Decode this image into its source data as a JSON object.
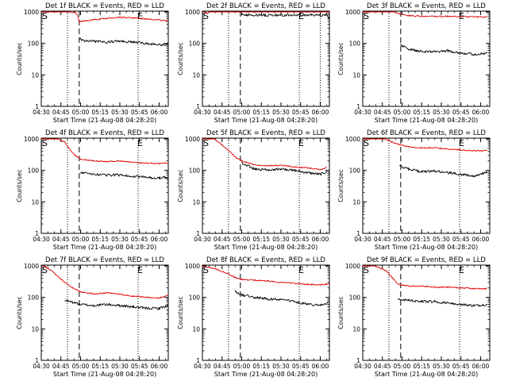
{
  "figure": {
    "x_axis_title": "Start Time (21-Aug-08 04:28:20)",
    "y_axis_title": "Counts/sec",
    "x_tick_labels": [
      "04:30",
      "04:45",
      "05:00",
      "05:15",
      "05:30",
      "05:45",
      "06:00"
    ],
    "y_tick_labels": [
      "1",
      "10",
      "100",
      "1000"
    ],
    "colors": {
      "events": "#000000",
      "lld": "#e00000"
    }
  },
  "chart_data": [
    {
      "type": "line",
      "title": "Det 1f BLACK = Events, RED = LLD",
      "marker_s": "S",
      "marker_e": "E",
      "xlabel": "Start Time (21-Aug-08 04:28:20)",
      "ylabel": "Counts/sec",
      "yscale": "log",
      "ylim": [
        1,
        1000
      ],
      "xlim": [
        "04:30",
        "06:07"
      ],
      "vlines": [
        {
          "time": "04:50",
          "style": "dotted"
        },
        {
          "time": "04:59",
          "style": "dashed"
        },
        {
          "time": "05:44",
          "style": "dotted"
        }
      ],
      "x": [
        "04:30",
        "04:40",
        "04:50",
        "04:56",
        "04:58",
        "04:59",
        "05:03",
        "05:10",
        "05:20",
        "05:30",
        "05:40",
        "05:50",
        "06:00",
        "06:07"
      ],
      "series": [
        {
          "name": "LLD",
          "values": [
            1050,
            1050,
            1050,
            950,
            700,
            480,
            520,
            560,
            620,
            680,
            640,
            600,
            550,
            520
          ]
        },
        {
          "name": "Events",
          "values": [
            null,
            null,
            null,
            null,
            null,
            140,
            120,
            115,
            110,
            120,
            110,
            100,
            90,
            95
          ]
        }
      ]
    },
    {
      "type": "line",
      "title": "Det 2f BLACK = Events, RED = LLD",
      "marker_s": "S",
      "marker_e": "E",
      "xlabel": "Start Time (21-Aug-08 04:28:20)",
      "ylabel": "Counts/sec",
      "yscale": "log",
      "ylim": [
        1,
        1000
      ],
      "xlim": [
        "04:30",
        "06:07"
      ],
      "vlines": [
        {
          "time": "04:50",
          "style": "dotted"
        },
        {
          "time": "04:59",
          "style": "dashed"
        },
        {
          "time": "05:44",
          "style": "dotted"
        },
        {
          "time": "06:00",
          "style": "dotted"
        }
      ],
      "x": [
        "04:30",
        "04:32",
        "04:34",
        "04:36",
        "04:40",
        "04:50",
        "04:58",
        "05:00",
        "05:20",
        "05:40",
        "06:00",
        "06:05",
        "06:07"
      ],
      "series": [
        {
          "name": "LLD",
          "values": [
            1050,
            1050,
            900,
            1150,
            1150,
            1150,
            1150,
            1130,
            1120,
            1120,
            1110,
            1100,
            1000
          ]
        },
        {
          "name": "Events",
          "values": [
            null,
            null,
            null,
            null,
            null,
            null,
            null,
            800,
            790,
            790,
            790,
            800,
            600
          ]
        }
      ]
    },
    {
      "type": "line",
      "title": "Det 3f BLACK = Events, RED = LLD",
      "marker_s": "S",
      "marker_e": "E",
      "xlabel": "Start Time (21-Aug-08 04:28:20)",
      "ylabel": "Counts/sec",
      "yscale": "log",
      "ylim": [
        1,
        1000
      ],
      "xlim": [
        "04:30",
        "06:07"
      ],
      "vlines": [
        {
          "time": "04:50",
          "style": "dotted"
        },
        {
          "time": "04:59",
          "style": "dashed"
        },
        {
          "time": "05:44",
          "style": "dotted"
        }
      ],
      "x": [
        "04:30",
        "04:40",
        "04:50",
        "04:56",
        "04:59",
        "05:05",
        "05:15",
        "05:25",
        "05:35",
        "05:45",
        "05:55",
        "06:05"
      ],
      "series": [
        {
          "name": "LLD",
          "values": [
            1100,
            1100,
            1050,
            960,
            820,
            760,
            730,
            720,
            720,
            710,
            700,
            690
          ]
        },
        {
          "name": "Events",
          "values": [
            null,
            null,
            null,
            null,
            90,
            65,
            55,
            55,
            58,
            50,
            45,
            48
          ]
        }
      ]
    },
    {
      "type": "line",
      "title": "Det 4f BLACK = Events, RED = LLD",
      "marker_s": "S",
      "marker_e": "E",
      "xlabel": "Start Time (21-Aug-08 04:28:20)",
      "ylabel": "Counts/sec",
      "yscale": "log",
      "ylim": [
        1,
        1000
      ],
      "xlim": [
        "04:30",
        "06:07"
      ],
      "vlines": [
        {
          "time": "04:50",
          "style": "dotted"
        },
        {
          "time": "04:59",
          "style": "dashed"
        },
        {
          "time": "05:44",
          "style": "dotted"
        }
      ],
      "x": [
        "04:30",
        "04:40",
        "04:48",
        "04:52",
        "04:56",
        "05:00",
        "05:10",
        "05:20",
        "05:30",
        "05:40",
        "05:50",
        "06:00",
        "06:07"
      ],
      "series": [
        {
          "name": "LLD",
          "values": [
            1100,
            1100,
            800,
            450,
            300,
            230,
            200,
            190,
            200,
            180,
            170,
            165,
            170
          ]
        },
        {
          "name": "Events",
          "values": [
            null,
            null,
            null,
            null,
            null,
            85,
            75,
            70,
            72,
            65,
            60,
            58,
            60
          ]
        }
      ]
    },
    {
      "type": "line",
      "title": "Det 5f BLACK = Events, RED = LLD",
      "marker_s": "S",
      "marker_e": "E",
      "xlabel": "Start Time (21-Aug-08 04:28:20)",
      "ylabel": "Counts/sec",
      "yscale": "log",
      "ylim": [
        1,
        1000
      ],
      "xlim": [
        "04:30",
        "06:07"
      ],
      "vlines": [
        {
          "time": "04:50",
          "style": "dotted"
        },
        {
          "time": "04:59",
          "style": "dashed"
        },
        {
          "time": "05:44",
          "style": "dotted"
        }
      ],
      "x": [
        "04:30",
        "04:38",
        "04:44",
        "04:50",
        "04:56",
        "05:00",
        "05:10",
        "05:20",
        "05:30",
        "05:40",
        "05:50",
        "06:00",
        "06:05"
      ],
      "series": [
        {
          "name": "LLD",
          "values": [
            1100,
            1100,
            700,
            420,
            250,
            200,
            150,
            140,
            145,
            130,
            120,
            105,
            125
          ]
        },
        {
          "name": "Events",
          "values": [
            null,
            null,
            null,
            null,
            null,
            170,
            110,
            105,
            110,
            100,
            85,
            75,
            90
          ]
        }
      ]
    },
    {
      "type": "line",
      "title": "Det 6f BLACK = Events, RED = LLD",
      "marker_s": "S",
      "marker_e": "E",
      "xlabel": "Start Time (21-Aug-08 04:28:20)",
      "ylabel": "Counts/sec",
      "yscale": "log",
      "ylim": [
        1,
        1000
      ],
      "xlim": [
        "04:30",
        "06:07"
      ],
      "vlines": [
        {
          "time": "04:50",
          "style": "dotted"
        },
        {
          "time": "04:59",
          "style": "dashed"
        },
        {
          "time": "05:44",
          "style": "dotted"
        }
      ],
      "x": [
        "04:30",
        "04:45",
        "04:52",
        "04:58",
        "05:05",
        "05:15",
        "05:25",
        "05:35",
        "05:45",
        "05:55",
        "06:05"
      ],
      "series": [
        {
          "name": "LLD",
          "values": [
            1100,
            1100,
            800,
            650,
            560,
            520,
            520,
            480,
            450,
            420,
            430
          ]
        },
        {
          "name": "Events",
          "values": [
            null,
            null,
            null,
            140,
            110,
            90,
            95,
            85,
            75,
            65,
            90
          ]
        }
      ]
    },
    {
      "type": "line",
      "title": "Det 7f BLACK = Events, RED = LLD",
      "marker_s": "S",
      "marker_e": "E",
      "xlabel": "Start Time (21-Aug-08 04:28:20)",
      "ylabel": "Counts/sec",
      "yscale": "log",
      "ylim": [
        1,
        1000
      ],
      "xlim": [
        "04:30",
        "06:07"
      ],
      "vlines": [
        {
          "time": "04:50",
          "style": "dotted"
        },
        {
          "time": "04:59",
          "style": "dashed"
        },
        {
          "time": "05:44",
          "style": "dotted"
        }
      ],
      "x": [
        "04:30",
        "04:36",
        "04:42",
        "04:48",
        "04:54",
        "05:00",
        "05:10",
        "05:20",
        "05:30",
        "05:40",
        "05:50",
        "06:00",
        "06:07"
      ],
      "series": [
        {
          "name": "LLD",
          "values": [
            1100,
            800,
            500,
            300,
            200,
            150,
            130,
            140,
            125,
            110,
            100,
            95,
            120
          ]
        },
        {
          "name": "Events",
          "values": [
            null,
            null,
            null,
            80,
            70,
            60,
            55,
            60,
            55,
            50,
            45,
            45,
            55
          ]
        }
      ]
    },
    {
      "type": "line",
      "title": "Det 8f BLACK = Events, RED = LLD",
      "marker_s": "S",
      "marker_e": "E",
      "xlabel": "Start Time (21-Aug-08 04:28:20)",
      "ylabel": "Counts/sec",
      "yscale": "log",
      "ylim": [
        1,
        1000
      ],
      "xlim": [
        "04:30",
        "06:07"
      ],
      "vlines": [
        {
          "time": "04:50",
          "style": "dotted"
        },
        {
          "time": "04:59",
          "style": "dashed"
        },
        {
          "time": "05:44",
          "style": "dotted"
        }
      ],
      "x": [
        "04:30",
        "04:40",
        "04:50",
        "04:55",
        "05:00",
        "05:10",
        "05:20",
        "05:30",
        "05:40",
        "05:50",
        "06:00",
        "06:07"
      ],
      "series": [
        {
          "name": "LLD",
          "values": [
            1000,
            800,
            560,
            420,
            370,
            350,
            330,
            300,
            280,
            260,
            250,
            270
          ]
        },
        {
          "name": "Events",
          "values": [
            null,
            null,
            null,
            160,
            120,
            100,
            90,
            85,
            75,
            60,
            55,
            70
          ]
        }
      ]
    },
    {
      "type": "line",
      "title": "Det 9f BLACK = Events, RED = LLD",
      "marker_s": "S",
      "marker_e": "E",
      "xlabel": "Start Time (21-Aug-08 04:28:20)",
      "ylabel": "Counts/sec",
      "yscale": "log",
      "ylim": [
        1,
        1000
      ],
      "xlim": [
        "04:30",
        "06:07"
      ],
      "vlines": [
        {
          "time": "04:50",
          "style": "dotted"
        },
        {
          "time": "04:59",
          "style": "dashed"
        },
        {
          "time": "05:44",
          "style": "dotted"
        }
      ],
      "x": [
        "04:30",
        "04:40",
        "04:48",
        "04:53",
        "04:57",
        "05:05",
        "05:15",
        "05:25",
        "05:35",
        "05:45",
        "05:55",
        "06:05"
      ],
      "series": [
        {
          "name": "LLD",
          "values": [
            1100,
            1000,
            700,
            400,
            260,
            230,
            230,
            210,
            210,
            200,
            190,
            190
          ]
        },
        {
          "name": "Events",
          "values": [
            null,
            null,
            null,
            null,
            90,
            80,
            75,
            75,
            65,
            60,
            55,
            60
          ]
        }
      ]
    }
  ]
}
